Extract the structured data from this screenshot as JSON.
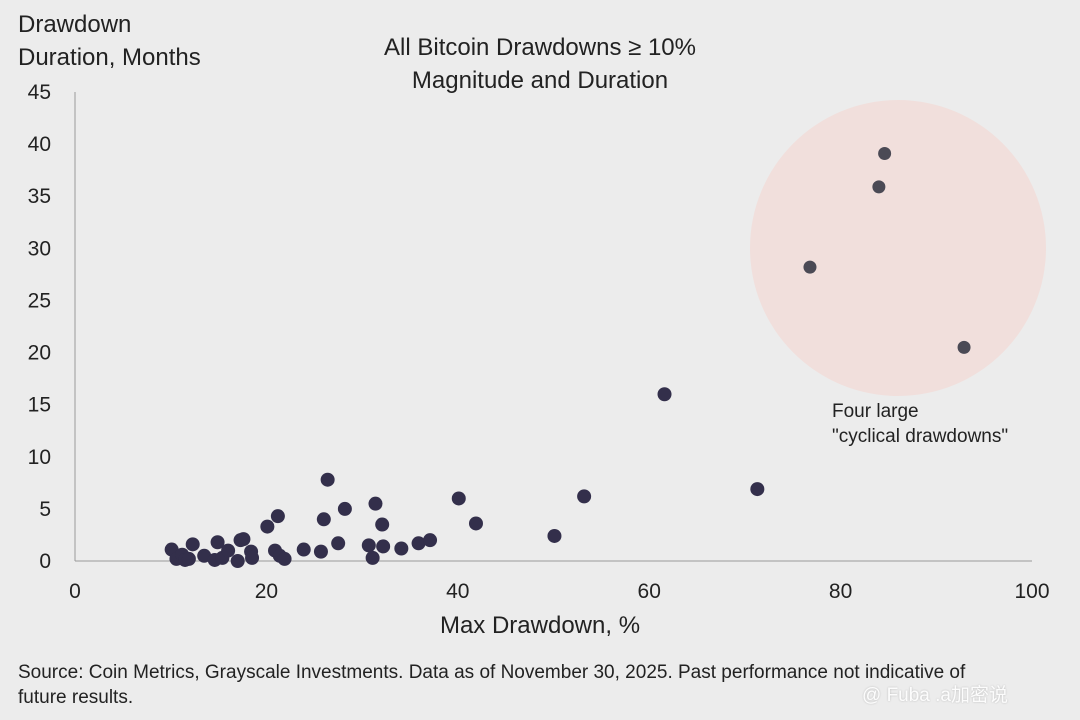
{
  "chart_data": {
    "type": "scatter",
    "title_line1": "All Bitcoin Drawdowns ≥ 10%",
    "title_line2": "Magnitude and Duration",
    "ylabel_line1": "Drawdown",
    "ylabel_line2": "Duration, Months",
    "xlabel": "Max Drawdown, %",
    "xlim": [
      0,
      100
    ],
    "ylim": [
      0,
      45
    ],
    "xticks": [
      0,
      20,
      40,
      60,
      80,
      100
    ],
    "yticks": [
      0,
      5,
      10,
      15,
      20,
      25,
      30,
      35,
      40,
      45
    ],
    "grid": false,
    "series": [
      {
        "name": "Drawdowns",
        "color": "#332f4b",
        "points": [
          {
            "x": 10.1,
            "y": 1.1
          },
          {
            "x": 10.6,
            "y": 0.2
          },
          {
            "x": 11.2,
            "y": 0.6
          },
          {
            "x": 11.5,
            "y": 0.1
          },
          {
            "x": 11.9,
            "y": 0.2
          },
          {
            "x": 12.3,
            "y": 1.6
          },
          {
            "x": 13.5,
            "y": 0.5
          },
          {
            "x": 14.6,
            "y": 0.1
          },
          {
            "x": 14.9,
            "y": 1.8
          },
          {
            "x": 15.4,
            "y": 0.3
          },
          {
            "x": 16.0,
            "y": 1.0
          },
          {
            "x": 17.0,
            "y": 0.0
          },
          {
            "x": 17.6,
            "y": 2.1
          },
          {
            "x": 17.3,
            "y": 2.0
          },
          {
            "x": 18.4,
            "y": 0.9
          },
          {
            "x": 18.5,
            "y": 0.3
          },
          {
            "x": 20.1,
            "y": 3.3
          },
          {
            "x": 20.9,
            "y": 1.0
          },
          {
            "x": 21.2,
            "y": 4.3
          },
          {
            "x": 21.4,
            "y": 0.5
          },
          {
            "x": 21.9,
            "y": 0.2
          },
          {
            "x": 23.9,
            "y": 1.1
          },
          {
            "x": 25.7,
            "y": 0.9
          },
          {
            "x": 26.0,
            "y": 4.0
          },
          {
            "x": 26.4,
            "y": 7.8
          },
          {
            "x": 27.5,
            "y": 1.7
          },
          {
            "x": 28.2,
            "y": 5.0
          },
          {
            "x": 30.7,
            "y": 1.5
          },
          {
            "x": 31.1,
            "y": 0.3
          },
          {
            "x": 31.4,
            "y": 5.5
          },
          {
            "x": 32.1,
            "y": 3.5
          },
          {
            "x": 32.2,
            "y": 1.4
          },
          {
            "x": 34.1,
            "y": 1.2
          },
          {
            "x": 35.9,
            "y": 1.7
          },
          {
            "x": 37.1,
            "y": 2.0
          },
          {
            "x": 40.1,
            "y": 6.0
          },
          {
            "x": 41.9,
            "y": 3.6
          },
          {
            "x": 50.1,
            "y": 2.4
          },
          {
            "x": 53.2,
            "y": 6.2
          },
          {
            "x": 61.6,
            "y": 16.0
          },
          {
            "x": 71.3,
            "y": 6.9
          }
        ]
      },
      {
        "name": "Four large cyclical drawdowns",
        "color": "#4b4a55",
        "points": [
          {
            "x": 76.8,
            "y": 28.2
          },
          {
            "x": 84.0,
            "y": 35.9
          },
          {
            "x": 84.6,
            "y": 39.1
          },
          {
            "x": 92.9,
            "y": 20.5
          }
        ]
      }
    ],
    "highlight_color": "#f1dfdc",
    "annotation_line1": "Four large",
    "annotation_line2": "\"cyclical drawdowns\"",
    "source": "Source: Coin Metrics, Grayscale Investments. Data as of November 30, 2025. Past performance not indicative of future results.",
    "watermark": "@ Fuba .a加密说"
  }
}
